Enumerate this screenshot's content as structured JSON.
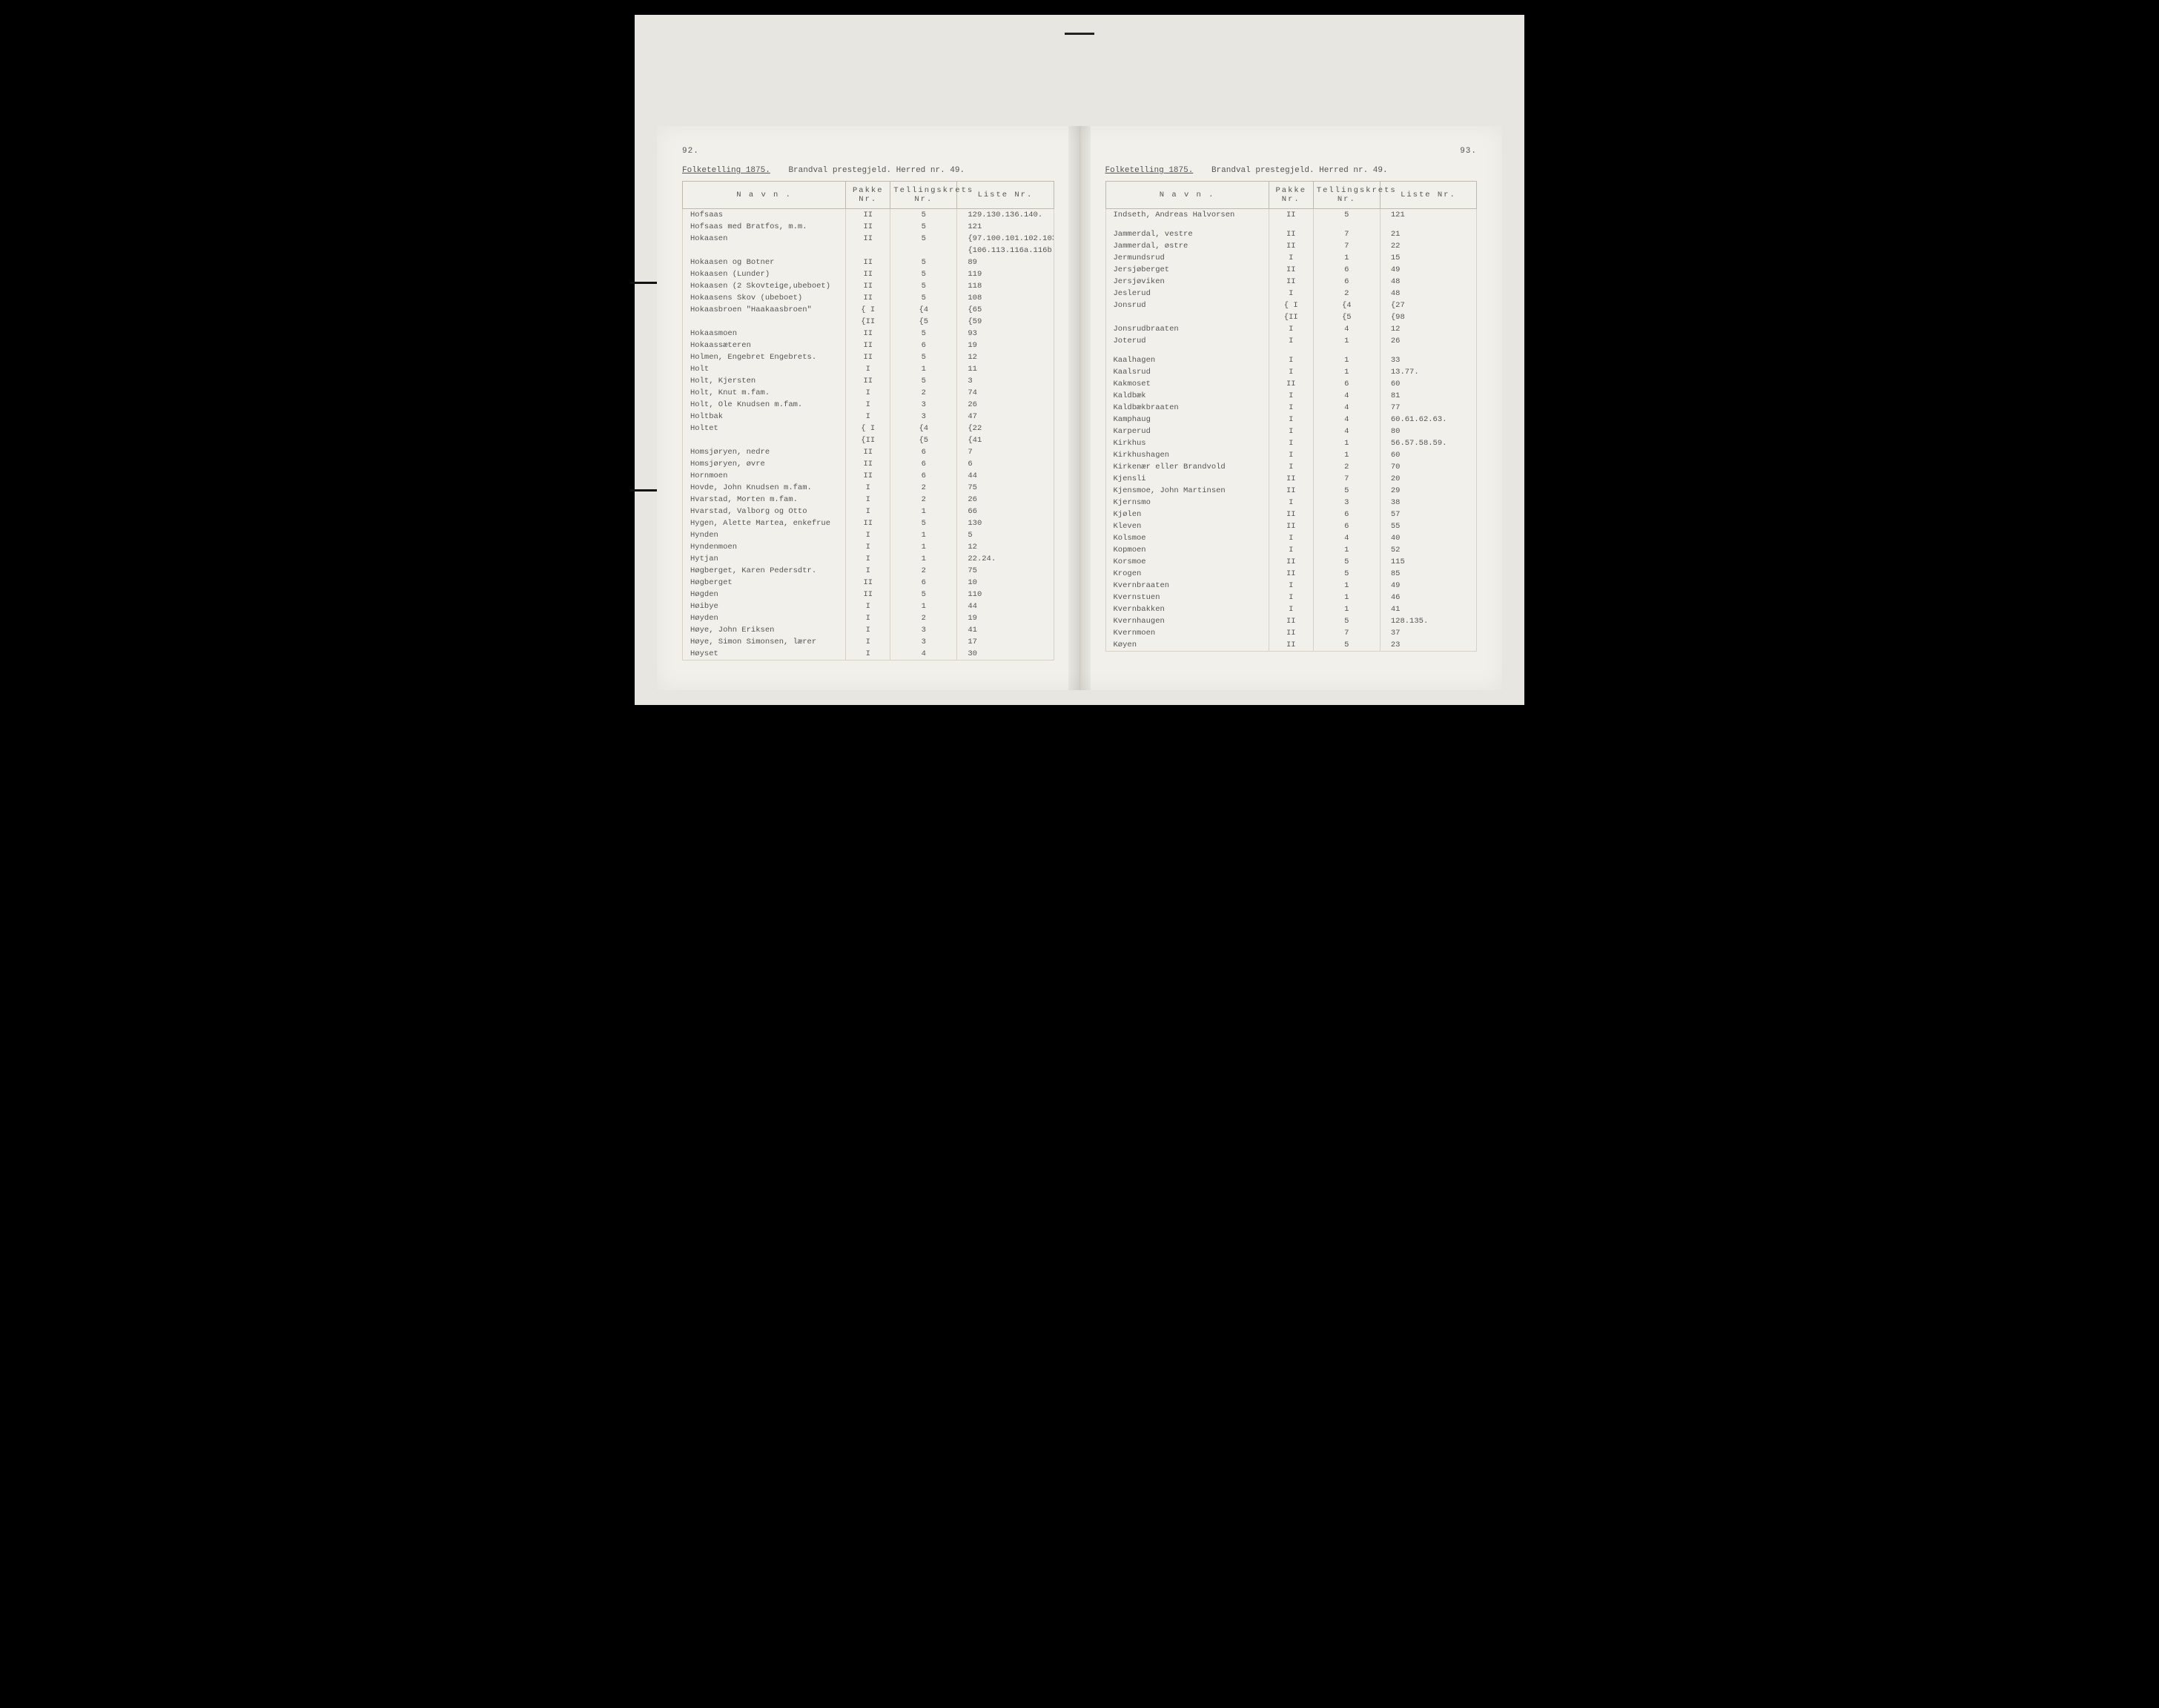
{
  "document": {
    "census_title": "Folketelling 1875.",
    "subheading": "Brandval prestegjeld. Herred nr. 49.",
    "columns": {
      "name": "N a v n .",
      "pakke": "Pakke\nNr.",
      "tellingskrets": "Tellingskrets\nNr.",
      "liste": "Liste\nNr."
    },
    "left_page": {
      "number": "92.",
      "rows": [
        {
          "n": "Hofsaas",
          "p": "II",
          "t": "5",
          "l": "129.130.136.140."
        },
        {
          "n": "Hofsaas med Bratfos, m.m.",
          "p": "II",
          "t": "5",
          "l": "121"
        },
        {
          "n": "Hokaasen",
          "p": "II",
          "t": "5",
          "l": "{97.100.101.102.103."
        },
        {
          "n": "",
          "p": "",
          "t": "",
          "l": "{106.113.116a.116b."
        },
        {
          "n": "Hokaasen og Botner",
          "p": "II",
          "t": "5",
          "l": "89"
        },
        {
          "n": "Hokaasen (Lunder)",
          "p": "II",
          "t": "5",
          "l": "119"
        },
        {
          "n": "Hokaasen (2 Skovteige,ubeboet)",
          "p": "II",
          "t": "5",
          "l": "118"
        },
        {
          "n": "Hokaasens Skov (ubeboet)",
          "p": "II",
          "t": "5",
          "l": "108"
        },
        {
          "n": "Hokaasbroen \"Haakaasbroen\"",
          "p": "{ I",
          "t": "{4",
          "l": "{65"
        },
        {
          "n": "",
          "p": "{II",
          "t": "{5",
          "l": "{59"
        },
        {
          "n": "Hokaasmoen",
          "p": "II",
          "t": "5",
          "l": "93"
        },
        {
          "n": "Hokaassæteren",
          "p": "II",
          "t": "6",
          "l": "19"
        },
        {
          "n": "Holmen, Engebret Engebrets.",
          "p": "II",
          "t": "5",
          "l": "12"
        },
        {
          "n": "Holt",
          "p": "I",
          "t": "1",
          "l": "11"
        },
        {
          "n": "Holt, Kjersten",
          "p": "II",
          "t": "5",
          "l": "3"
        },
        {
          "n": "Holt, Knut m.fam.",
          "p": "I",
          "t": "2",
          "l": "74"
        },
        {
          "n": "Holt, Ole Knudsen m.fam.",
          "p": "I",
          "t": "3",
          "l": "26"
        },
        {
          "n": "Holtbak",
          "p": "I",
          "t": "3",
          "l": "47"
        },
        {
          "n": "Holtet",
          "p": "{ I",
          "t": "{4",
          "l": "{22"
        },
        {
          "n": "",
          "p": "{II",
          "t": "{5",
          "l": "{41"
        },
        {
          "n": "Homsjøryen, nedre",
          "p": "II",
          "t": "6",
          "l": "7"
        },
        {
          "n": "Homsjøryen, øvre",
          "p": "II",
          "t": "6",
          "l": "6"
        },
        {
          "n": "Hornmoen",
          "p": "II",
          "t": "6",
          "l": "44"
        },
        {
          "n": "Hovde, John Knudsen m.fam.",
          "p": "I",
          "t": "2",
          "l": "75"
        },
        {
          "n": "Hvarstad, Morten m.fam.",
          "p": "I",
          "t": "2",
          "l": "26"
        },
        {
          "n": "Hvarstad, Valborg og Otto",
          "p": "I",
          "t": "1",
          "l": "66"
        },
        {
          "n": "Hygen, Alette Martea, enkefrue",
          "p": "II",
          "t": "5",
          "l": "130"
        },
        {
          "n": "Hynden",
          "p": "I",
          "t": "1",
          "l": "5"
        },
        {
          "n": "Hyndenmoen",
          "p": "I",
          "t": "1",
          "l": "12"
        },
        {
          "n": "Hytjan",
          "p": "I",
          "t": "1",
          "l": "22.24."
        },
        {
          "n": "Høgberget, Karen Pedersdtr.",
          "p": "I",
          "t": "2",
          "l": "75"
        },
        {
          "n": "Høgberget",
          "p": "II",
          "t": "6",
          "l": "10"
        },
        {
          "n": "Høgden",
          "p": "II",
          "t": "5",
          "l": "110"
        },
        {
          "n": "Høibye",
          "p": "I",
          "t": "1",
          "l": "44"
        },
        {
          "n": "Høyden",
          "p": "I",
          "t": "2",
          "l": "19"
        },
        {
          "n": "Høye, John Eriksen",
          "p": "I",
          "t": "3",
          "l": "41"
        },
        {
          "n": "Høye, Simon Simonsen, lærer",
          "p": "I",
          "t": "3",
          "l": "17"
        },
        {
          "n": "Høyset",
          "p": "I",
          "t": "4",
          "l": "30"
        }
      ]
    },
    "right_page": {
      "number": "93.",
      "rows": [
        {
          "n": "Indseth, Andreas Halvorsen",
          "p": "II",
          "t": "5",
          "l": "121"
        },
        {
          "spacer": true
        },
        {
          "n": "Jammerdal, vestre",
          "p": "II",
          "t": "7",
          "l": "21"
        },
        {
          "n": "Jammerdal, østre",
          "p": "II",
          "t": "7",
          "l": "22"
        },
        {
          "n": "Jermundsrud",
          "p": "I",
          "t": "1",
          "l": "15"
        },
        {
          "n": "Jersjøberget",
          "p": "II",
          "t": "6",
          "l": "49"
        },
        {
          "n": "Jersjøviken",
          "p": "II",
          "t": "6",
          "l": "48"
        },
        {
          "n": "Jeslerud",
          "p": "I",
          "t": "2",
          "l": "48"
        },
        {
          "n": "Jonsrud",
          "p": "{ I",
          "t": "{4",
          "l": "{27"
        },
        {
          "n": "",
          "p": "{II",
          "t": "{5",
          "l": "{98"
        },
        {
          "n": "Jonsrudbraaten",
          "p": "I",
          "t": "4",
          "l": "12"
        },
        {
          "n": "Joterud",
          "p": "I",
          "t": "1",
          "l": "26"
        },
        {
          "spacer": true
        },
        {
          "n": "Kaalhagen",
          "p": "I",
          "t": "1",
          "l": "33"
        },
        {
          "n": "Kaalsrud",
          "p": "I",
          "t": "1",
          "l": "13.77."
        },
        {
          "n": "Kakmoset",
          "p": "II",
          "t": "6",
          "l": "60"
        },
        {
          "n": "Kaldbæk",
          "p": "I",
          "t": "4",
          "l": "81"
        },
        {
          "n": "Kaldbækbraaten",
          "p": "I",
          "t": "4",
          "l": "77"
        },
        {
          "n": "Kamphaug",
          "p": "I",
          "t": "4",
          "l": "60.61.62.63."
        },
        {
          "n": "Karperud",
          "p": "I",
          "t": "4",
          "l": "80"
        },
        {
          "n": "Kirkhus",
          "p": "I",
          "t": "1",
          "l": "56.57.58.59."
        },
        {
          "n": "Kirkhushagen",
          "p": "I",
          "t": "1",
          "l": "60"
        },
        {
          "n": "Kirkenær eller Brandvold",
          "p": "I",
          "t": "2",
          "l": "70"
        },
        {
          "n": "Kjensli",
          "p": "II",
          "t": "7",
          "l": "20"
        },
        {
          "n": "Kjensmoe, John Martinsen",
          "p": "II",
          "t": "5",
          "l": "29"
        },
        {
          "n": "Kjernsmo",
          "p": "I",
          "t": "3",
          "l": "38"
        },
        {
          "n": "Kjølen",
          "p": "II",
          "t": "6",
          "l": "57"
        },
        {
          "n": "Kleven",
          "p": "II",
          "t": "6",
          "l": "55"
        },
        {
          "n": "Kolsmoe",
          "p": "I",
          "t": "4",
          "l": "40"
        },
        {
          "n": "Kopmoen",
          "p": "I",
          "t": "1",
          "l": "52"
        },
        {
          "n": "Korsmoe",
          "p": "II",
          "t": "5",
          "l": "115"
        },
        {
          "n": "Krogen",
          "p": "II",
          "t": "5",
          "l": "85"
        },
        {
          "n": "Kvernbraaten",
          "p": "I",
          "t": "1",
          "l": "49"
        },
        {
          "n": "Kvernstuen",
          "p": "I",
          "t": "1",
          "l": "46"
        },
        {
          "n": "Kvernbakken",
          "p": "I",
          "t": "1",
          "l": "41"
        },
        {
          "n": "Kvernhaugen",
          "p": "II",
          "t": "5",
          "l": "128.135."
        },
        {
          "n": "Kvernmoen",
          "p": "II",
          "t": "7",
          "l": "37"
        },
        {
          "n": "Køyen",
          "p": "II",
          "t": "5",
          "l": "23"
        }
      ]
    }
  },
  "style": {
    "page_bg": "#f2f0ea",
    "frame_bg": "#e8e6e0",
    "border_color": "#bdb9af",
    "text_color": "#555",
    "font_family": "Courier New",
    "font_size_pt": 10.5
  }
}
